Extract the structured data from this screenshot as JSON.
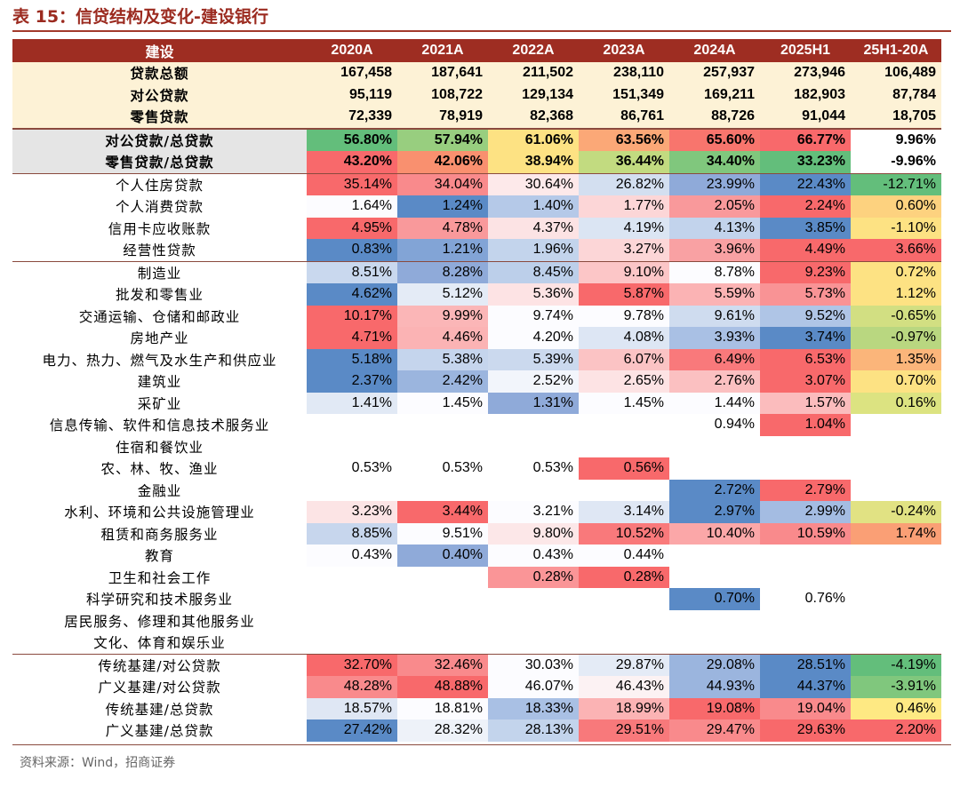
{
  "title": "表 15：信贷结构及变化-建设银行",
  "source": "资料来源：Wind，招商证券",
  "colors": {
    "title": "#9b2a1f",
    "header_bg": "#9e2d22",
    "summary_bg": "#fdf2d6"
  },
  "header": [
    "建设",
    "2020A",
    "2021A",
    "2022A",
    "2023A",
    "2024A",
    "2025H1",
    "25H1-20A"
  ],
  "sections": [
    {
      "type": "summary",
      "rows": [
        {
          "label": "贷款总额",
          "values": [
            "167,458",
            "187,641",
            "211,502",
            "238,110",
            "257,937",
            "273,946",
            "106,489"
          ]
        },
        {
          "label": "对公贷款",
          "values": [
            "95,119",
            "108,722",
            "129,134",
            "151,349",
            "169,211",
            "182,903",
            "87,784"
          ]
        },
        {
          "label": "零售贷款",
          "values": [
            "72,339",
            "78,919",
            "82,368",
            "86,761",
            "88,726",
            "91,044",
            "18,705"
          ]
        }
      ]
    },
    {
      "type": "ratio",
      "rows": [
        {
          "label": "对公贷款/总贷款",
          "values": [
            "56.80%",
            "57.94%",
            "61.06%",
            "63.56%",
            "65.60%",
            "66.77%",
            "9.96%"
          ],
          "colors": [
            "#63be7b",
            "#98ce7f",
            "#fde283",
            "#fba877",
            "#f8756d",
            "#f8696b",
            "#ffffff"
          ]
        },
        {
          "label": "零售贷款/总贷款",
          "values": [
            "43.20%",
            "42.06%",
            "38.94%",
            "36.44%",
            "34.40%",
            "33.23%",
            "-9.96%"
          ],
          "colors": [
            "#f8696b",
            "#f9906f",
            "#fde283",
            "#c2db80",
            "#80c77d",
            "#63be7b",
            "#ffffff"
          ]
        }
      ]
    },
    {
      "type": "retail",
      "rows": [
        {
          "label": "个人住房贷款",
          "values": [
            "35.14%",
            "34.04%",
            "30.64%",
            "26.82%",
            "23.99%",
            "22.43%",
            "-12.71%"
          ],
          "colors": [
            "#f8696b",
            "#f98a8c",
            "#fde9ea",
            "#d3dff0",
            "#8faad9",
            "#5a8ac6",
            "#63be7b"
          ]
        },
        {
          "label": "个人消费贷款",
          "values": [
            "1.64%",
            "1.24%",
            "1.40%",
            "1.77%",
            "2.05%",
            "2.24%",
            "0.60%"
          ],
          "colors": [
            "#fcfcff",
            "#5a8ac6",
            "#b5c9e8",
            "#fcd6d7",
            "#f9999b",
            "#f8696b",
            "#fdd27f"
          ]
        },
        {
          "label": "信用卡应收账款",
          "values": [
            "4.95%",
            "4.78%",
            "4.37%",
            "4.19%",
            "4.13%",
            "3.85%",
            "-1.10%"
          ],
          "colors": [
            "#f8696b",
            "#f9999b",
            "#fce3e4",
            "#dbe5f3",
            "#c2d3ec",
            "#5a8ac6",
            "#fde283"
          ]
        },
        {
          "label": "经营性贷款",
          "values": [
            "0.83%",
            "1.21%",
            "1.96%",
            "3.27%",
            "3.96%",
            "4.49%",
            "3.66%"
          ],
          "colors": [
            "#5a8ac6",
            "#82a4d6",
            "#c3d4ec",
            "#fcd6d7",
            "#f9a1a3",
            "#f8696b",
            "#f8696b"
          ]
        }
      ]
    },
    {
      "type": "corporate",
      "rows": [
        {
          "label": "制造业",
          "values": [
            "8.51%",
            "8.28%",
            "8.45%",
            "9.10%",
            "8.78%",
            "9.23%",
            "0.72%"
          ],
          "colors": [
            "#c9d8ee",
            "#8faad9",
            "#bccfea",
            "#fcc6c7",
            "#fcfcff",
            "#f8696b",
            "#fde283"
          ]
        },
        {
          "label": "批发和零售业",
          "values": [
            "4.62%",
            "5.12%",
            "5.36%",
            "5.87%",
            "5.59%",
            "5.73%",
            "1.12%"
          ],
          "colors": [
            "#5a8ac6",
            "#e4ebf6",
            "#fde3e4",
            "#f8696b",
            "#fbb3b4",
            "#f99395",
            "#fde283"
          ]
        },
        {
          "label": "交通运输、仓储和邮政业",
          "values": [
            "10.17%",
            "9.99%",
            "9.74%",
            "9.78%",
            "9.61%",
            "9.52%",
            "-0.65%"
          ],
          "colors": [
            "#f8696b",
            "#fbb6b7",
            "#fcfcff",
            "#fcfcff",
            "#cfdcef",
            "#afc5e6",
            "#d2df82"
          ]
        },
        {
          "label": "房地产业",
          "values": [
            "4.71%",
            "4.46%",
            "4.20%",
            "4.08%",
            "3.93%",
            "3.74%",
            "-0.97%"
          ],
          "colors": [
            "#f8696b",
            "#fbb3b4",
            "#fcfcff",
            "#dde6f4",
            "#a9c0e4",
            "#5a8ac6",
            "#b9d780"
          ]
        },
        {
          "label": "电力、热力、燃气及水生产和供应业",
          "values": [
            "5.18%",
            "5.38%",
            "5.39%",
            "6.07%",
            "6.49%",
            "6.53%",
            "1.35%"
          ],
          "colors": [
            "#5a8ac6",
            "#c5d5ed",
            "#cbd9ee",
            "#fbc3c4",
            "#f9797b",
            "#f8696b",
            "#fbb57a"
          ]
        },
        {
          "label": "建筑业",
          "values": [
            "2.37%",
            "2.42%",
            "2.52%",
            "2.65%",
            "2.76%",
            "3.07%",
            "0.70%"
          ],
          "colors": [
            "#5a8ac6",
            "#9bb5de",
            "#f2f5fb",
            "#fde3e4",
            "#fbc0c1",
            "#f8696b",
            "#fde283"
          ]
        },
        {
          "label": "采矿业",
          "values": [
            "1.41%",
            "1.45%",
            "1.31%",
            "1.45%",
            "1.44%",
            "1.57%",
            "0.16%"
          ],
          "colors": [
            "#e1e9f5",
            "#fcfcff",
            "#8faad9",
            "#fcfcff",
            "#fcfcff",
            "#fbbcbd",
            "#dce381"
          ]
        },
        {
          "label": "信息传输、软件和信息技术服务业",
          "values": [
            "",
            "",
            "",
            "",
            "0.94%",
            "1.04%",
            ""
          ],
          "colors": [
            "#ffffff",
            "#ffffff",
            "#ffffff",
            "#ffffff",
            "#ffffff",
            "#f8696b",
            "#ffffff"
          ]
        },
        {
          "label": "住宿和餐饮业",
          "values": [
            "",
            "",
            "",
            "",
            "",
            "",
            ""
          ],
          "colors": [
            "#ffffff",
            "#ffffff",
            "#ffffff",
            "#ffffff",
            "#ffffff",
            "#ffffff",
            "#ffffff"
          ]
        },
        {
          "label": "农、林、牧、渔业",
          "values": [
            "0.53%",
            "0.53%",
            "0.53%",
            "0.56%",
            "",
            "",
            ""
          ],
          "colors": [
            "#ffffff",
            "#ffffff",
            "#ffffff",
            "#f8696b",
            "#ffffff",
            "#ffffff",
            "#ffffff"
          ]
        },
        {
          "label": "金融业",
          "values": [
            "",
            "",
            "",
            "",
            "2.72%",
            "2.79%",
            ""
          ],
          "colors": [
            "#ffffff",
            "#ffffff",
            "#ffffff",
            "#ffffff",
            "#5a8ac6",
            "#f8696b",
            "#ffffff"
          ]
        },
        {
          "label": "水利、环境和公共设施管理业",
          "values": [
            "3.23%",
            "3.44%",
            "3.21%",
            "3.14%",
            "2.97%",
            "2.99%",
            "-0.24%"
          ],
          "colors": [
            "#fce4e5",
            "#f8696b",
            "#fcfcff",
            "#dfe7f4",
            "#5a8ac6",
            "#a4bce2",
            "#e1e283"
          ]
        },
        {
          "label": "租赁和商务服务业",
          "values": [
            "8.85%",
            "9.51%",
            "9.80%",
            "10.52%",
            "10.40%",
            "10.59%",
            "1.74%"
          ],
          "colors": [
            "#c7d6ed",
            "#fcfcff",
            "#fce7e8",
            "#f9797b",
            "#fba7a8",
            "#f98a8c",
            "#fa9f75"
          ]
        },
        {
          "label": "教育",
          "values": [
            "0.43%",
            "0.40%",
            "0.43%",
            "0.44%",
            "",
            "",
            ""
          ],
          "colors": [
            "#fcfcff",
            "#8faad9",
            "#fcfcff",
            "#fcfcff",
            "#ffffff",
            "#ffffff",
            "#ffffff"
          ]
        },
        {
          "label": "卫生和社会工作",
          "values": [
            "",
            "",
            "0.28%",
            "0.28%",
            "",
            "",
            ""
          ],
          "colors": [
            "#ffffff",
            "#ffffff",
            "#fa9597",
            "#f8696b",
            "#ffffff",
            "#ffffff",
            "#ffffff"
          ]
        },
        {
          "label": "科学研究和技术服务业",
          "values": [
            "",
            "",
            "",
            "",
            "0.70%",
            "0.76%",
            ""
          ],
          "colors": [
            "#ffffff",
            "#ffffff",
            "#ffffff",
            "#ffffff",
            "#5a8ac6",
            "#ffffff",
            "#ffffff"
          ]
        },
        {
          "label": "居民服务、修理和其他服务业",
          "values": [
            "",
            "",
            "",
            "",
            "",
            "",
            ""
          ],
          "colors": [
            "#ffffff",
            "#ffffff",
            "#ffffff",
            "#ffffff",
            "#ffffff",
            "#ffffff",
            "#ffffff"
          ]
        },
        {
          "label": "文化、体育和娱乐业",
          "values": [
            "",
            "",
            "",
            "",
            "",
            "",
            ""
          ],
          "colors": [
            "#ffffff",
            "#ffffff",
            "#ffffff",
            "#ffffff",
            "#ffffff",
            "#ffffff",
            "#ffffff"
          ]
        }
      ]
    },
    {
      "type": "infra",
      "rows": [
        {
          "label": "传统基建/对公贷款",
          "values": [
            "32.70%",
            "32.46%",
            "30.03%",
            "29.87%",
            "29.08%",
            "28.51%",
            "-4.19%"
          ],
          "colors": [
            "#f8696b",
            "#f98a8c",
            "#fcfcff",
            "#e4ebf6",
            "#9bb5de",
            "#5a8ac6",
            "#63be7b"
          ]
        },
        {
          "label": "广义基建/对公贷款",
          "values": [
            "48.28%",
            "48.88%",
            "46.07%",
            "46.43%",
            "44.93%",
            "44.37%",
            "-3.91%"
          ],
          "colors": [
            "#f98a8c",
            "#f8696b",
            "#fcfcff",
            "#fcf2f3",
            "#9bb5de",
            "#5a8ac6",
            "#80c77d"
          ]
        },
        {
          "label": "传统基建/总贷款",
          "values": [
            "18.57%",
            "18.81%",
            "18.33%",
            "18.99%",
            "19.08%",
            "19.04%",
            "0.46%"
          ],
          "colors": [
            "#dfe7f4",
            "#fcfcff",
            "#a9c0e4",
            "#fbb3b4",
            "#f8696b",
            "#f98a8c",
            "#fee983"
          ]
        },
        {
          "label": "广义基建/总贷款",
          "values": [
            "27.42%",
            "28.32%",
            "28.13%",
            "29.51%",
            "29.47%",
            "29.63%",
            "2.20%"
          ],
          "colors": [
            "#5a8ac6",
            "#eef2f9",
            "#c3d4ec",
            "#f8797b",
            "#f98a8c",
            "#f8696b",
            "#f8696b"
          ]
        }
      ]
    }
  ]
}
